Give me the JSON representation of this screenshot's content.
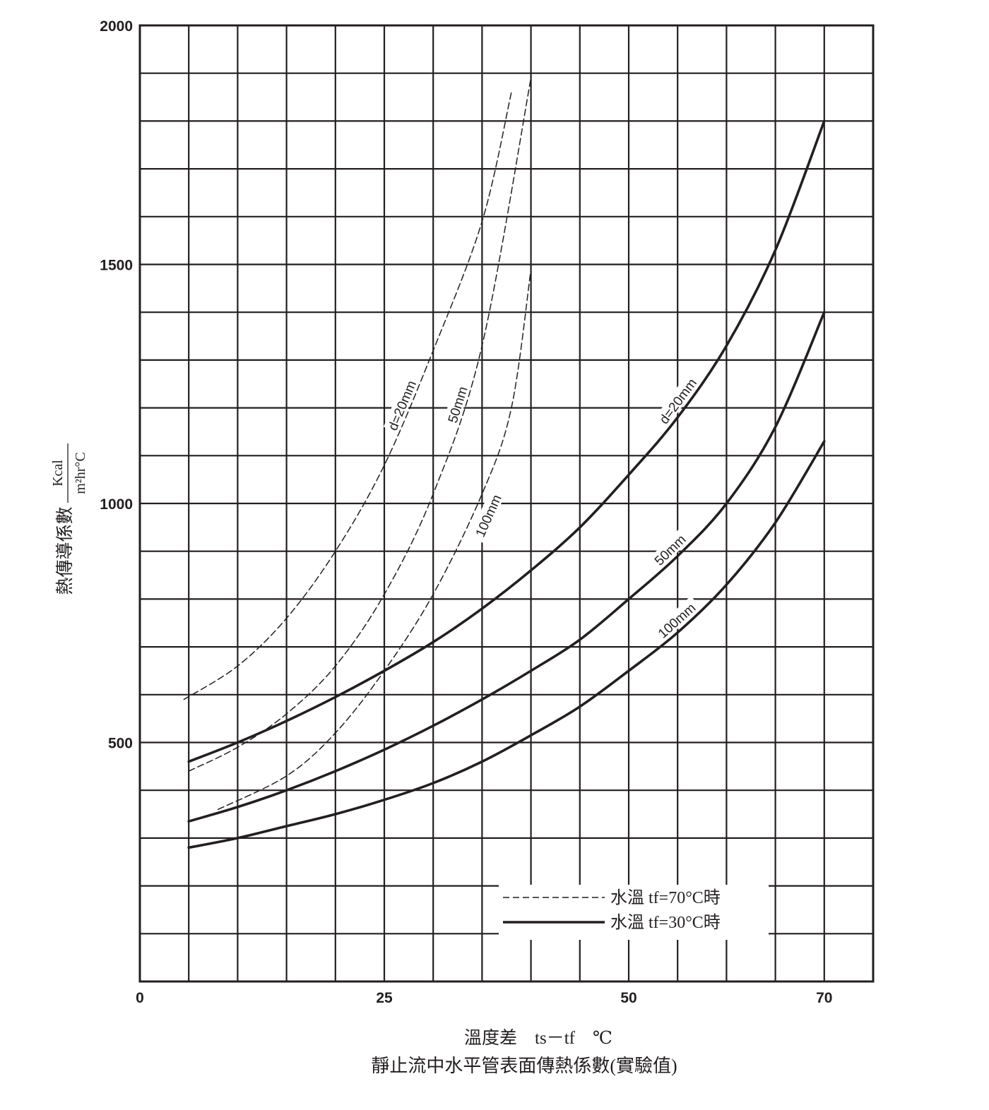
{
  "chart_data": {
    "type": "line",
    "title": "靜止流中水平管表面傳熱係數(實驗值)",
    "xlabel": "溫度差　ts－tf　℃",
    "ylabel": "熱傳導係數",
    "ylabel_unit_numerator": "Kcal",
    "ylabel_unit_denominator": "m²hr°C",
    "xlim": [
      0,
      75
    ],
    "ylim": [
      0,
      2000
    ],
    "x_ticks": [
      {
        "value": 0,
        "label": "0"
      },
      {
        "value": 25,
        "label": "25"
      },
      {
        "value": 50,
        "label": "50"
      },
      {
        "value": 70,
        "label": "70"
      }
    ],
    "y_ticks": [
      {
        "value": 500,
        "label": "500"
      },
      {
        "value": 1000,
        "label": "1000"
      },
      {
        "value": 1500,
        "label": "1500"
      },
      {
        "value": 2000,
        "label": "2000"
      }
    ],
    "grid": true,
    "grid_x_step": 5,
    "grid_y_step": 100,
    "legend_position": "bottom-right",
    "legend": [
      {
        "style": "dashed",
        "label": "水溫 tf=70°C時"
      },
      {
        "style": "solid",
        "label": "水溫 tf=30°C時"
      }
    ],
    "series": [
      {
        "name": "d=20mm",
        "group": "tf=70°C",
        "style": "dashed",
        "x": [
          4.5,
          10,
          15,
          20,
          25,
          30,
          35,
          38
        ],
        "y": [
          590,
          660,
          760,
          900,
          1080,
          1320,
          1590,
          1860
        ]
      },
      {
        "name": "50mm",
        "group": "tf=70°C",
        "style": "dashed",
        "x": [
          5,
          10,
          15,
          20,
          25,
          30,
          35,
          40
        ],
        "y": [
          440,
          490,
          560,
          660,
          810,
          1020,
          1330,
          1890
        ]
      },
      {
        "name": "100mm",
        "group": "tf=70°C",
        "style": "dashed",
        "x": [
          8,
          15,
          20,
          25,
          30,
          35,
          38,
          40
        ],
        "y": [
          360,
          430,
          520,
          650,
          810,
          1020,
          1200,
          1490
        ]
      },
      {
        "name": "d=20mm",
        "group": "tf=30°C",
        "style": "solid",
        "x": [
          5,
          10,
          15,
          20,
          25,
          30,
          35,
          40,
          45,
          50,
          55,
          60,
          65,
          70
        ],
        "y": [
          460,
          500,
          545,
          595,
          650,
          710,
          780,
          860,
          950,
          1060,
          1180,
          1330,
          1530,
          1800
        ]
      },
      {
        "name": "50mm",
        "group": "tf=30°C",
        "style": "solid",
        "x": [
          5,
          10,
          15,
          20,
          25,
          30,
          35,
          40,
          45,
          50,
          55,
          60,
          65,
          70
        ],
        "y": [
          335,
          365,
          400,
          440,
          485,
          535,
          590,
          650,
          715,
          800,
          890,
          1000,
          1160,
          1400
        ]
      },
      {
        "name": "100mm",
        "group": "tf=30°C",
        "style": "solid",
        "x": [
          5,
          10,
          15,
          20,
          25,
          30,
          35,
          40,
          45,
          50,
          55,
          60,
          65,
          70
        ],
        "y": [
          280,
          300,
          325,
          350,
          380,
          415,
          460,
          515,
          575,
          650,
          730,
          830,
          960,
          1130
        ]
      }
    ],
    "curve_labels": [
      {
        "text": "d=20mm",
        "series_index": 0
      },
      {
        "text": "50mm",
        "series_index": 1
      },
      {
        "text": "100mm",
        "series_index": 2
      },
      {
        "text": "d=20mm",
        "series_index": 3
      },
      {
        "text": "50mm",
        "series_index": 4
      },
      {
        "text": "100mm",
        "series_index": 5
      }
    ]
  }
}
